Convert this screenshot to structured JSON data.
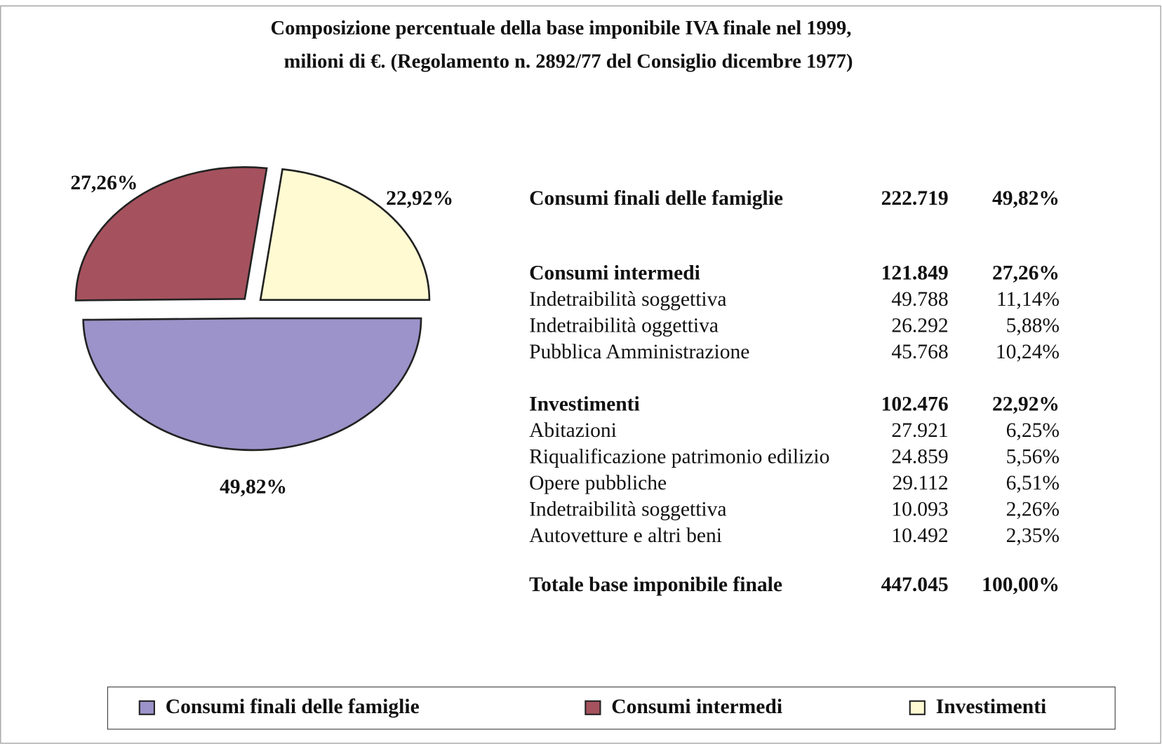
{
  "chart_data": {
    "type": "pie",
    "title": "Composizione percentuale della base imponibile IVA finale nel 1999,",
    "subtitle": "milioni di €. (Regolamento n. 2892/77 del Consiglio dicembre 1977)",
    "categories": [
      "Consumi finali delle famiglie",
      "Consumi intermedi",
      "Investimenti"
    ],
    "values": [
      49.82,
      27.26,
      22.92
    ],
    "value_labels": [
      "49,82%",
      "27,26%",
      "22,92%"
    ],
    "colors": [
      "#9b93c9",
      "#a5525e",
      "#fffad2"
    ],
    "legend": "bottom"
  },
  "table": {
    "groups": [
      [
        [
          "Consumi finali delle famiglie",
          "222.719",
          "49,82%"
        ]
      ],
      [
        [
          "Consumi intermedi",
          "121.849",
          "27,26%"
        ],
        [
          "Indetraibilità soggettiva",
          "49.788",
          "11,14%"
        ],
        [
          "Indetraibilità oggettiva",
          "26.292",
          "5,88%"
        ],
        [
          "Pubblica Amministrazione",
          "45.768",
          "10,24%"
        ]
      ],
      [
        [
          "Investimenti",
          "102.476",
          "22,92%"
        ],
        [
          "Abitazioni",
          "27.921",
          "6,25%"
        ],
        [
          "Riqualificazione patrimonio edilizio",
          "24.859",
          "5,56%"
        ],
        [
          "Opere pubbliche",
          "29.112",
          "6,51%"
        ],
        [
          "Indetraibilità soggettiva",
          "10.093",
          "2,26%"
        ],
        [
          "Autovetture e altri beni",
          "10.492",
          "2,35%"
        ]
      ],
      [
        [
          "Totale base imponibile finale",
          "447.045",
          "100,00%"
        ]
      ]
    ]
  }
}
